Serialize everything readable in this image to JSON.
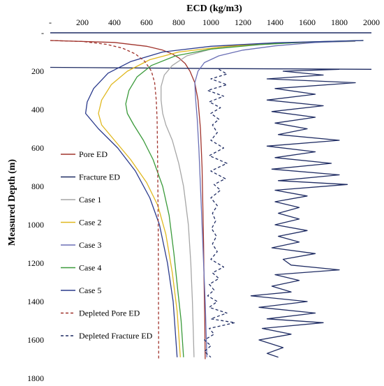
{
  "chart_data": {
    "type": "line",
    "title": "ECD (kg/m3)",
    "xlabel": "ECD (kg/m3)",
    "ylabel": "Measured Depth (m)",
    "xlim": [
      0,
      2000
    ],
    "ylim": [
      0,
      1800
    ],
    "y_inverted": true,
    "x_axis_position": "top",
    "x_ticks": [
      "-",
      "200",
      "400",
      "600",
      "800",
      "1000",
      "1200",
      "1400",
      "1600",
      "1800",
      "2000"
    ],
    "y_ticks": [
      "-",
      "200",
      "400",
      "600",
      "800",
      "1000",
      "1200",
      "1400",
      "1600",
      "1800"
    ],
    "legend_position": "left",
    "series": [
      {
        "name": "Pore ED",
        "color": "#a0332c",
        "dash": "solid",
        "points": [
          [
            0,
            40
          ],
          [
            400,
            50
          ],
          [
            600,
            70
          ],
          [
            700,
            90
          ],
          [
            760,
            110
          ],
          [
            800,
            130
          ],
          [
            840,
            160
          ],
          [
            870,
            200
          ],
          [
            900,
            260
          ],
          [
            920,
            350
          ],
          [
            935,
            500
          ],
          [
            945,
            700
          ],
          [
            950,
            900
          ],
          [
            955,
            1100
          ],
          [
            958,
            1300
          ],
          [
            962,
            1500
          ],
          [
            965,
            1700
          ]
        ]
      },
      {
        "name": "Fracture ED",
        "color": "#1f2c63",
        "dash": "solid",
        "points": [
          [
            0,
            180
          ],
          [
            500,
            183
          ],
          [
            1000,
            186
          ],
          [
            1500,
            188
          ],
          [
            2000,
            190
          ]
        ]
      },
      {
        "name": "Case 1",
        "color": "#a6a6a6",
        "dash": "solid",
        "points": [
          [
            1900,
            45
          ],
          [
            1500,
            52
          ],
          [
            1200,
            65
          ],
          [
            1000,
            85
          ],
          [
            850,
            120
          ],
          [
            760,
            170
          ],
          [
            710,
            220
          ],
          [
            690,
            280
          ],
          [
            690,
            350
          ],
          [
            700,
            420
          ],
          [
            720,
            480
          ],
          [
            760,
            560
          ],
          [
            800,
            680
          ],
          [
            830,
            800
          ],
          [
            860,
            1000
          ],
          [
            875,
            1200
          ],
          [
            885,
            1400
          ],
          [
            895,
            1690
          ]
        ]
      },
      {
        "name": "Case 2",
        "color": "#e0b81f",
        "dash": "solid",
        "points": [
          [
            1950,
            40
          ],
          [
            1500,
            52
          ],
          [
            1100,
            70
          ],
          [
            800,
            100
          ],
          [
            620,
            140
          ],
          [
            480,
            200
          ],
          [
            380,
            270
          ],
          [
            320,
            350
          ],
          [
            300,
            420
          ],
          [
            320,
            480
          ],
          [
            400,
            560
          ],
          [
            500,
            660
          ],
          [
            600,
            780
          ],
          [
            670,
            900
          ],
          [
            720,
            1050
          ],
          [
            760,
            1250
          ],
          [
            790,
            1450
          ],
          [
            810,
            1690
          ]
        ]
      },
      {
        "name": "Case 3",
        "color": "#6a6fb5",
        "dash": "solid",
        "points": [
          [
            1950,
            40
          ],
          [
            1650,
            50
          ],
          [
            1400,
            68
          ],
          [
            1200,
            90
          ],
          [
            1050,
            120
          ],
          [
            960,
            155
          ],
          [
            920,
            200
          ],
          [
            900,
            260
          ],
          [
            905,
            340
          ],
          [
            915,
            450
          ],
          [
            925,
            600
          ],
          [
            935,
            800
          ],
          [
            945,
            1000
          ],
          [
            955,
            1200
          ],
          [
            965,
            1400
          ],
          [
            975,
            1690
          ]
        ]
      },
      {
        "name": "Case 4",
        "color": "#3a9a3a",
        "dash": "solid",
        "points": [
          [
            1950,
            40
          ],
          [
            1600,
            48
          ],
          [
            1300,
            62
          ],
          [
            1000,
            85
          ],
          [
            780,
            120
          ],
          [
            630,
            170
          ],
          [
            540,
            230
          ],
          [
            490,
            300
          ],
          [
            470,
            370
          ],
          [
            480,
            420
          ],
          [
            520,
            480
          ],
          [
            580,
            560
          ],
          [
            640,
            660
          ],
          [
            700,
            800
          ],
          [
            740,
            950
          ],
          [
            770,
            1150
          ],
          [
            795,
            1350
          ],
          [
            815,
            1500
          ],
          [
            830,
            1690
          ]
        ]
      },
      {
        "name": "Case 5",
        "color": "#2a3a8c",
        "dash": "solid",
        "points": [
          [
            1950,
            40
          ],
          [
            1400,
            52
          ],
          [
            1000,
            70
          ],
          [
            700,
            100
          ],
          [
            500,
            150
          ],
          [
            360,
            210
          ],
          [
            270,
            290
          ],
          [
            230,
            360
          ],
          [
            220,
            420
          ],
          [
            300,
            500
          ],
          [
            420,
            600
          ],
          [
            530,
            720
          ],
          [
            620,
            860
          ],
          [
            680,
            1000
          ],
          [
            730,
            1200
          ],
          [
            765,
            1400
          ],
          [
            790,
            1690
          ]
        ]
      },
      {
        "name": "Depleted Pore ED",
        "color": "#a0332c",
        "dash": "dashed",
        "points": [
          [
            0,
            40
          ],
          [
            200,
            45
          ],
          [
            350,
            60
          ],
          [
            450,
            80
          ],
          [
            530,
            110
          ],
          [
            590,
            150
          ],
          [
            630,
            200
          ],
          [
            650,
            260
          ],
          [
            660,
            350
          ],
          [
            665,
            450
          ],
          [
            668,
            600
          ],
          [
            670,
            800
          ],
          [
            672,
            1000
          ],
          [
            673,
            1200
          ],
          [
            674,
            1400
          ],
          [
            675,
            1700
          ]
        ]
      },
      {
        "name": "Depleted Fracture ED",
        "color": "#1f2c63",
        "dash": "dashed",
        "points": [
          [
            1050,
            190
          ],
          [
            1100,
            215
          ],
          [
            1000,
            240
          ],
          [
            1100,
            270
          ],
          [
            980,
            300
          ],
          [
            1080,
            330
          ],
          [
            990,
            360
          ],
          [
            1060,
            390
          ],
          [
            1000,
            420
          ],
          [
            1050,
            450
          ],
          [
            1010,
            480
          ],
          [
            1040,
            520
          ],
          [
            1000,
            560
          ],
          [
            1080,
            600
          ],
          [
            990,
            640
          ],
          [
            1100,
            680
          ],
          [
            1000,
            720
          ],
          [
            1090,
            760
          ],
          [
            1020,
            790
          ],
          [
            1060,
            820
          ],
          [
            1000,
            860
          ],
          [
            1040,
            900
          ],
          [
            1010,
            940
          ],
          [
            1030,
            980
          ],
          [
            1005,
            1020
          ],
          [
            1035,
            1060
          ],
          [
            1010,
            1100
          ],
          [
            1040,
            1140
          ],
          [
            1000,
            1180
          ],
          [
            1080,
            1220
          ],
          [
            1010,
            1250
          ],
          [
            1050,
            1280
          ],
          [
            990,
            1310
          ],
          [
            1020,
            1340
          ],
          [
            980,
            1370
          ],
          [
            1040,
            1400
          ],
          [
            990,
            1430
          ],
          [
            1100,
            1460
          ],
          [
            1000,
            1490
          ],
          [
            1150,
            1510
          ],
          [
            990,
            1540
          ],
          [
            1020,
            1570
          ],
          [
            960,
            1600
          ],
          [
            1000,
            1630
          ],
          [
            960,
            1660
          ],
          [
            1000,
            1690
          ]
        ]
      },
      {
        "name": "",
        "color": "#1f2c63",
        "dash": "solid",
        "points": [
          [
            1800,
            190
          ],
          [
            1450,
            200
          ],
          [
            1700,
            220
          ],
          [
            1350,
            240
          ],
          [
            1900,
            260
          ],
          [
            1400,
            290
          ],
          [
            1650,
            320
          ],
          [
            1350,
            350
          ],
          [
            1700,
            380
          ],
          [
            1380,
            410
          ],
          [
            1650,
            440
          ],
          [
            1400,
            470
          ],
          [
            1600,
            500
          ],
          [
            1420,
            530
          ],
          [
            1800,
            560
          ],
          [
            1350,
            590
          ],
          [
            1650,
            620
          ],
          [
            1400,
            650
          ],
          [
            1750,
            680
          ],
          [
            1380,
            710
          ],
          [
            1800,
            740
          ],
          [
            1420,
            770
          ],
          [
            1850,
            790
          ],
          [
            1400,
            820
          ],
          [
            1600,
            850
          ],
          [
            1400,
            880
          ],
          [
            1550,
            910
          ],
          [
            1420,
            940
          ],
          [
            1550,
            970
          ],
          [
            1400,
            1000
          ],
          [
            1600,
            1030
          ],
          [
            1420,
            1060
          ],
          [
            1550,
            1090
          ],
          [
            1380,
            1120
          ],
          [
            1650,
            1150
          ],
          [
            1450,
            1180
          ],
          [
            1500,
            1210
          ],
          [
            1800,
            1235
          ],
          [
            1400,
            1260
          ],
          [
            1550,
            1290
          ],
          [
            1380,
            1320
          ],
          [
            1500,
            1350
          ],
          [
            1250,
            1370
          ],
          [
            1600,
            1400
          ],
          [
            1300,
            1430
          ],
          [
            1650,
            1460
          ],
          [
            1350,
            1490
          ],
          [
            1700,
            1510
          ],
          [
            1320,
            1540
          ],
          [
            1500,
            1570
          ],
          [
            1300,
            1600
          ],
          [
            1450,
            1640
          ],
          [
            1350,
            1670
          ],
          [
            1420,
            1690
          ]
        ]
      }
    ]
  }
}
